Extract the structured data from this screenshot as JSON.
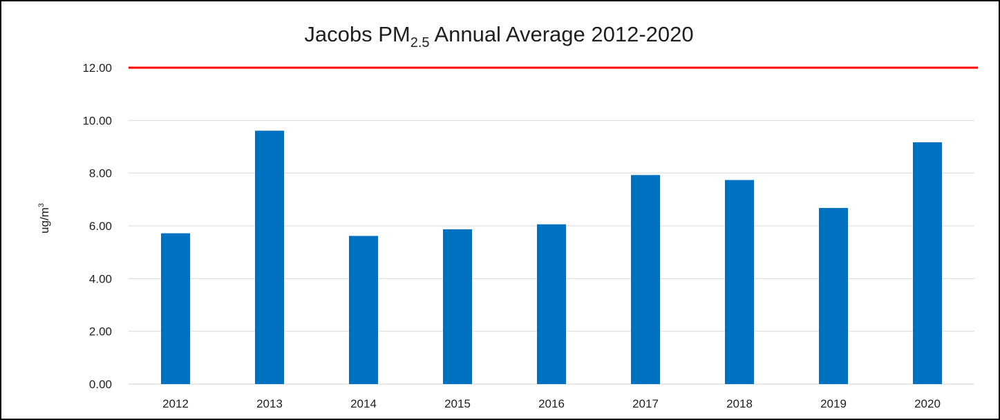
{
  "chart_data": {
    "type": "bar",
    "title": {
      "prefix": "Jacobs PM",
      "subscript": "2.5",
      "suffix": " Annual Average 2012-2020"
    },
    "ylabel": {
      "base": "ug/m",
      "superscript": "3"
    },
    "xlabel": "",
    "categories": [
      "2012",
      "2013",
      "2014",
      "2015",
      "2016",
      "2017",
      "2018",
      "2019",
      "2020"
    ],
    "series": [
      {
        "values": [
          5.72,
          9.61,
          5.62,
          5.87,
          6.06,
          7.93,
          7.74,
          6.68,
          9.17
        ],
        "color": "#0070C0"
      }
    ],
    "yticks": [
      "0.00",
      "2.00",
      "4.00",
      "6.00",
      "8.00",
      "10.00",
      "12.00"
    ],
    "ylim": [
      0,
      12
    ],
    "reference_line": {
      "value": 12,
      "color": "#FF0000"
    },
    "grid": true,
    "legend": "none"
  }
}
